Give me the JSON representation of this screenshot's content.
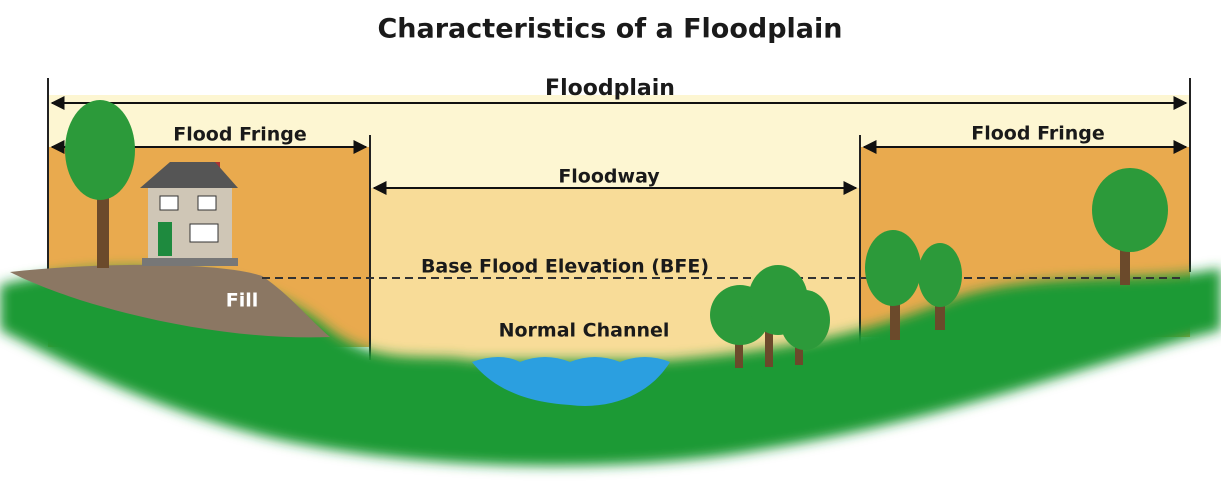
{
  "title": "Characteristics of a Floodplain",
  "labels": {
    "floodplain": "Floodplain",
    "flood_fringe_left": "Flood Fringe",
    "flood_fringe_right": "Flood Fringe",
    "floodway": "Floodway",
    "bfe": "Base Flood Elevation (BFE)",
    "normal_channel": "Normal Channel",
    "fill": "Fill"
  }
}
